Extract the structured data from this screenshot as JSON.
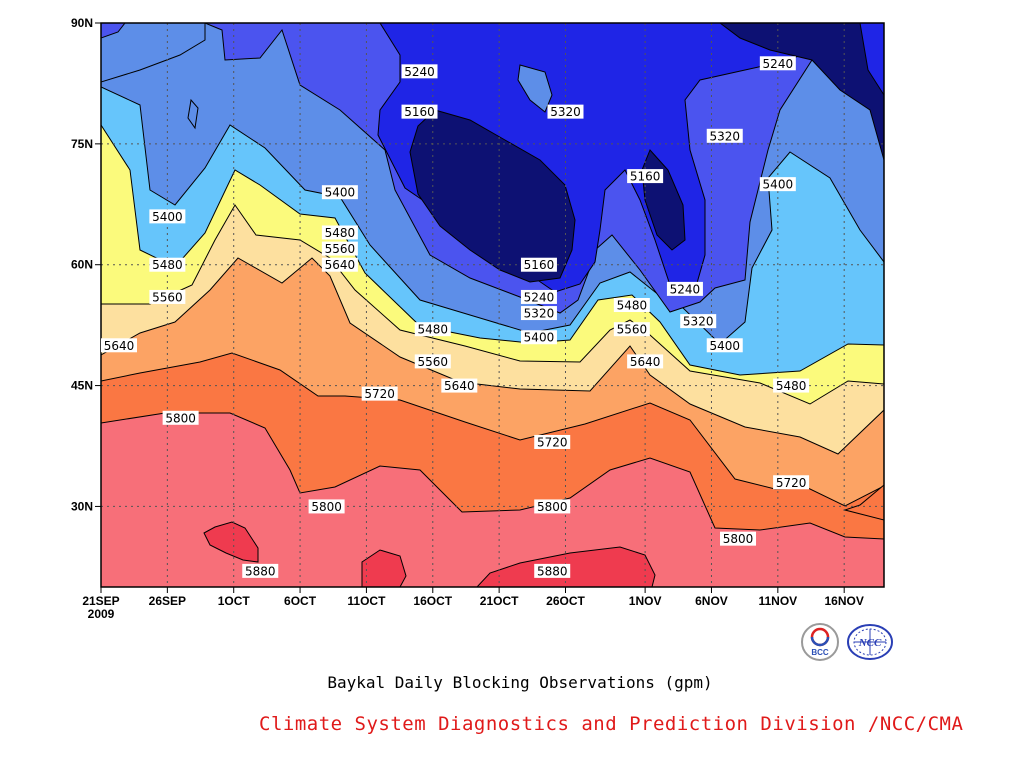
{
  "chart_data": {
    "type": "contour",
    "title": "Baykal Daily Blocking Observations (gpm)",
    "y_ticks": [
      "90N",
      "75N",
      "60N",
      "45N",
      "30N"
    ],
    "x_ticks": [
      "21SEP",
      "26SEP",
      "1OCT",
      "6OCT",
      "11OCT",
      "16OCT",
      "21OCT",
      "26OCT",
      "1NOV",
      "6NOV",
      "11NOV",
      "16NOV"
    ],
    "x_year": "2009",
    "ylim": [
      20,
      90
    ],
    "xlim": [
      "2009-09-21",
      "2009-11-19"
    ],
    "levels": [
      5160,
      5240,
      5320,
      5400,
      5480,
      5560,
      5640,
      5720,
      5800,
      5880
    ],
    "level_colors": [
      "#0d1173",
      "#1f25e6",
      "#4b54ef",
      "#5d8ee8",
      "#66c5fb",
      "#fbfa7c",
      "#fde09f",
      "#fca364",
      "#fa7743",
      "#f76f79",
      "#ef3b4f"
    ],
    "contour_labels": [
      {
        "text": "5240",
        "date": "2009-10-15",
        "lat": 84
      },
      {
        "text": "5320",
        "date": "2009-10-26",
        "lat": 79
      },
      {
        "text": "5160",
        "date": "2009-10-15",
        "lat": 79
      },
      {
        "text": "5240",
        "date": "2009-11-11",
        "lat": 85
      },
      {
        "text": "5320",
        "date": "2009-11-07",
        "lat": 76
      },
      {
        "text": "5160",
        "date": "2009-11-01",
        "lat": 71
      },
      {
        "text": "5400",
        "date": "2009-11-11",
        "lat": 70
      },
      {
        "text": "5400",
        "date": "2009-09-26",
        "lat": 66
      },
      {
        "text": "5400",
        "date": "2009-10-09",
        "lat": 69
      },
      {
        "text": "5480",
        "date": "2009-10-09",
        "lat": 64
      },
      {
        "text": "5560",
        "date": "2009-10-09",
        "lat": 62
      },
      {
        "text": "5480",
        "date": "2009-09-26",
        "lat": 60
      },
      {
        "text": "5560",
        "date": "2009-09-26",
        "lat": 56
      },
      {
        "text": "5640",
        "date": "2009-10-09",
        "lat": 60
      },
      {
        "text": "5160",
        "date": "2009-10-24",
        "lat": 60
      },
      {
        "text": "5240",
        "date": "2009-10-24",
        "lat": 56
      },
      {
        "text": "5320",
        "date": "2009-10-24",
        "lat": 54
      },
      {
        "text": "5400",
        "date": "2009-10-24",
        "lat": 51
      },
      {
        "text": "5480",
        "date": "2009-10-31",
        "lat": 55
      },
      {
        "text": "5560",
        "date": "2009-10-31",
        "lat": 52
      },
      {
        "text": "5640",
        "date": "2009-11-01",
        "lat": 48
      },
      {
        "text": "5240",
        "date": "2009-11-04",
        "lat": 57
      },
      {
        "text": "5320",
        "date": "2009-11-05",
        "lat": 53
      },
      {
        "text": "5400",
        "date": "2009-11-07",
        "lat": 50
      },
      {
        "text": "5480",
        "date": "2009-10-16",
        "lat": 52
      },
      {
        "text": "5560",
        "date": "2009-10-16",
        "lat": 48
      },
      {
        "text": "5640",
        "date": "2009-10-18",
        "lat": 45
      },
      {
        "text": "5480",
        "date": "2009-11-12",
        "lat": 45
      },
      {
        "text": "5640",
        "date": "2009-09-21",
        "lat": 50
      },
      {
        "text": "5720",
        "date": "2009-10-12",
        "lat": 44
      },
      {
        "text": "5720",
        "date": "2009-10-25",
        "lat": 38
      },
      {
        "text": "5800",
        "date": "2009-09-27",
        "lat": 41
      },
      {
        "text": "5720",
        "date": "2009-11-12",
        "lat": 33
      },
      {
        "text": "5800",
        "date": "2009-10-08",
        "lat": 30
      },
      {
        "text": "5800",
        "date": "2009-10-25",
        "lat": 30
      },
      {
        "text": "5800",
        "date": "2009-11-08",
        "lat": 26
      },
      {
        "text": "5880",
        "date": "2009-10-03",
        "lat": 22
      },
      {
        "text": "5880",
        "date": "2009-10-25",
        "lat": 22
      }
    ],
    "grid": true
  },
  "caption": "Baykal Daily Blocking Observations (gpm)",
  "credit": "Climate System Diagnostics and Prediction Division /NCC/CMA",
  "logos": {
    "left": "BCC",
    "right": "NCC"
  }
}
